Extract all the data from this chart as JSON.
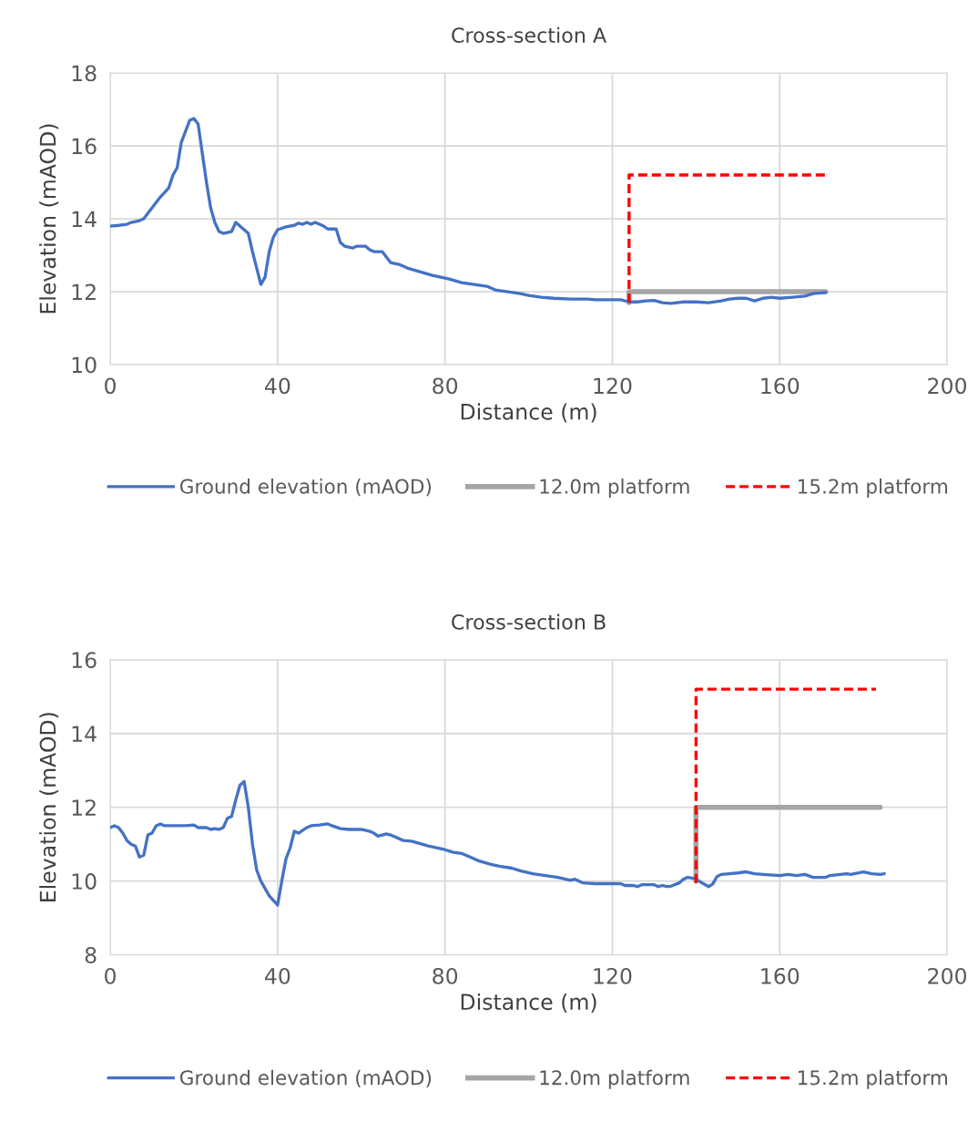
{
  "chart_data": [
    {
      "type": "line",
      "title": "Cross-section A",
      "xlabel": "Distance (m)",
      "ylabel": "Elevation (mAOD)",
      "xlim": [
        0,
        200
      ],
      "xticks": [
        0,
        40,
        80,
        120,
        160,
        200
      ],
      "ylim": [
        10,
        18
      ],
      "yticks": [
        10,
        12,
        14,
        16,
        18
      ],
      "grid": true,
      "legend": "bottom",
      "marker": "none",
      "series": [
        {
          "name": "Ground elevation (mAOD)",
          "color": "#4472c4",
          "line_style": "solid",
          "x": [
            0,
            2,
            4,
            5,
            7,
            8,
            10,
            12,
            14,
            15,
            16,
            17,
            18,
            19,
            20,
            21,
            22,
            23,
            24,
            25,
            26,
            27,
            29,
            30,
            32,
            33,
            34,
            36,
            37,
            38,
            39,
            40,
            42,
            44,
            45,
            46,
            47,
            48,
            49,
            51,
            52,
            54,
            55,
            56,
            58,
            59,
            61,
            62,
            63,
            65,
            67,
            69,
            71,
            74,
            77,
            79,
            81,
            84,
            87,
            90,
            92,
            95,
            98,
            100,
            103,
            106,
            110,
            114,
            116,
            120,
            122,
            124,
            126,
            128,
            130,
            132,
            134,
            137,
            140,
            143,
            146,
            148,
            150,
            152,
            154,
            156,
            158,
            160,
            163,
            166,
            168,
            171
          ],
          "values": [
            13.8,
            13.82,
            13.85,
            13.9,
            13.95,
            14.0,
            14.3,
            14.6,
            14.85,
            15.2,
            15.4,
            16.1,
            16.4,
            16.7,
            16.75,
            16.6,
            15.8,
            15.0,
            14.3,
            13.9,
            13.65,
            13.6,
            13.65,
            13.9,
            13.7,
            13.6,
            13.1,
            12.2,
            12.4,
            13.1,
            13.5,
            13.7,
            13.78,
            13.82,
            13.88,
            13.85,
            13.9,
            13.85,
            13.9,
            13.8,
            13.72,
            13.72,
            13.35,
            13.25,
            13.2,
            13.25,
            13.25,
            13.15,
            13.1,
            13.1,
            12.8,
            12.75,
            12.65,
            12.55,
            12.45,
            12.4,
            12.35,
            12.25,
            12.2,
            12.15,
            12.05,
            12.0,
            11.95,
            11.9,
            11.85,
            11.82,
            11.8,
            11.8,
            11.78,
            11.78,
            11.78,
            11.72,
            11.72,
            11.75,
            11.76,
            11.7,
            11.68,
            11.72,
            11.72,
            11.7,
            11.75,
            11.8,
            11.82,
            11.82,
            11.75,
            11.82,
            11.85,
            11.82,
            11.85,
            11.88,
            11.95,
            11.98
          ]
        },
        {
          "name": "12.0m platform",
          "color": "#a5a5a5",
          "line_style": "solid",
          "x": [
            124,
            124,
            171
          ],
          "values": [
            11.7,
            12.0,
            12.0
          ]
        },
        {
          "name": "15.2m platform",
          "color": "#ff0000",
          "line_style": "dashed",
          "x": [
            124,
            124,
            171
          ],
          "values": [
            11.7,
            15.2,
            15.2
          ]
        }
      ]
    },
    {
      "type": "line",
      "title": "Cross-section B",
      "xlabel": "Distance (m)",
      "ylabel": "Elevation (mAOD)",
      "xlim": [
        0,
        200
      ],
      "xticks": [
        0,
        40,
        80,
        120,
        160,
        200
      ],
      "ylim": [
        8,
        16
      ],
      "yticks": [
        8,
        10,
        12,
        14,
        16
      ],
      "grid": true,
      "legend": "bottom",
      "marker": "none",
      "series": [
        {
          "name": "Ground elevation (mAOD)",
          "color": "#4472c4",
          "line_style": "solid",
          "x": [
            0,
            1,
            2,
            3,
            4,
            5,
            6,
            7,
            8,
            9,
            10,
            11,
            12,
            13,
            15,
            18,
            20,
            21,
            23,
            24,
            25,
            26,
            27,
            28,
            29,
            30,
            31,
            32,
            33,
            34,
            35,
            36,
            38,
            40,
            41,
            42,
            43,
            44,
            45,
            47,
            48,
            50,
            52,
            53,
            55,
            57,
            60,
            62,
            63,
            64,
            66,
            67,
            70,
            72,
            76,
            78,
            80,
            82,
            84,
            86,
            88,
            91,
            93,
            96,
            98,
            101,
            104,
            107,
            110,
            111,
            113,
            116,
            122,
            123,
            125,
            126,
            127,
            130,
            131,
            132,
            133,
            134,
            136,
            137,
            138,
            139,
            140,
            141,
            143,
            144,
            145,
            146,
            148,
            150,
            152,
            154,
            156,
            160,
            162,
            164,
            166,
            168,
            171,
            172,
            176,
            177,
            180,
            182,
            184,
            185
          ],
          "values": [
            11.45,
            11.5,
            11.45,
            11.3,
            11.1,
            11.0,
            10.95,
            10.65,
            10.7,
            11.25,
            11.3,
            11.5,
            11.55,
            11.5,
            11.5,
            11.5,
            11.52,
            11.45,
            11.45,
            11.4,
            11.42,
            11.4,
            11.45,
            11.7,
            11.75,
            12.2,
            12.6,
            12.7,
            12.0,
            11.0,
            10.3,
            10.0,
            9.6,
            9.35,
            10.0,
            10.6,
            10.9,
            11.35,
            11.3,
            11.45,
            11.5,
            11.52,
            11.55,
            11.5,
            11.42,
            11.4,
            11.4,
            11.35,
            11.3,
            11.22,
            11.28,
            11.25,
            11.1,
            11.08,
            10.95,
            10.9,
            10.85,
            10.78,
            10.75,
            10.65,
            10.55,
            10.45,
            10.4,
            10.35,
            10.28,
            10.2,
            10.15,
            10.1,
            10.02,
            10.05,
            9.95,
            9.93,
            9.93,
            9.88,
            9.88,
            9.85,
            9.9,
            9.9,
            9.85,
            9.88,
            9.85,
            9.86,
            9.95,
            10.05,
            10.1,
            10.08,
            10.05,
            9.98,
            9.85,
            9.92,
            10.12,
            10.18,
            10.2,
            10.22,
            10.25,
            10.2,
            10.18,
            10.15,
            10.18,
            10.15,
            10.18,
            10.1,
            10.1,
            10.15,
            10.2,
            10.18,
            10.25,
            10.2,
            10.18,
            10.2
          ]
        },
        {
          "name": "12.0m platform",
          "color": "#a5a5a5",
          "line_style": "solid",
          "x": [
            140,
            140,
            184
          ],
          "values": [
            10.0,
            12.0,
            12.0
          ]
        },
        {
          "name": "15.2m platform",
          "color": "#ff0000",
          "line_style": "dashed",
          "x": [
            140,
            140,
            183
          ],
          "values": [
            9.95,
            15.2,
            15.2
          ]
        }
      ]
    }
  ]
}
